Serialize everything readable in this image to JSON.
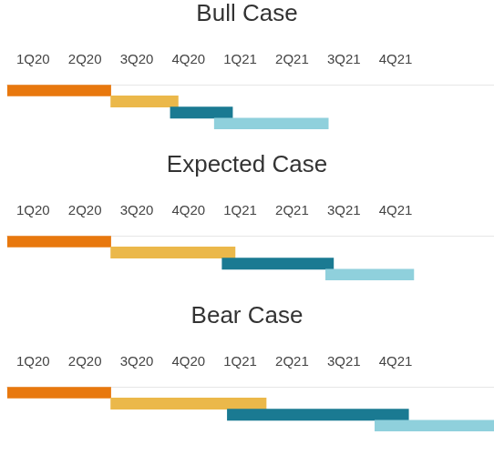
{
  "chart_data": [
    {
      "type": "bar",
      "title": "Bull Case",
      "orientation": "horizontal",
      "categories": [
        null,
        null,
        null,
        null
      ],
      "values": [
        [
          0,
          2
        ],
        [
          2,
          3.3
        ],
        [
          3.15,
          4.35
        ],
        [
          4,
          6.2
        ]
      ],
      "colors": [
        "#e8780e",
        "#ebb84a",
        "#1a7a92",
        "#8fd0dc"
      ],
      "xlim": [
        0,
        9.4
      ],
      "xticks": [
        {
          "value": 0.5,
          "label": "1Q20"
        },
        {
          "value": 1.5,
          "label": "2Q20"
        },
        {
          "value": 2.5,
          "label": "3Q20"
        },
        {
          "value": 3.5,
          "label": "4Q20"
        },
        {
          "value": 4.5,
          "label": "1Q21"
        },
        {
          "value": 5.5,
          "label": "2Q21"
        },
        {
          "value": 6.5,
          "label": "3Q21"
        },
        {
          "value": 7.5,
          "label": "4Q21"
        }
      ],
      "tick_labels": "x",
      "grid": false
    },
    {
      "type": "bar",
      "title": "Expected Case",
      "orientation": "horizontal",
      "categories": [
        null,
        null,
        null,
        null
      ],
      "values": [
        [
          0,
          2
        ],
        [
          2,
          4.4
        ],
        [
          4.15,
          6.3
        ],
        [
          6.15,
          7.85
        ]
      ],
      "colors": [
        "#e8780e",
        "#ebb84a",
        "#1a7a92",
        "#8fd0dc"
      ],
      "xlim": [
        0,
        9.4
      ],
      "xticks": [
        {
          "value": 0.5,
          "label": "1Q20"
        },
        {
          "value": 1.5,
          "label": "2Q20"
        },
        {
          "value": 2.5,
          "label": "3Q20"
        },
        {
          "value": 3.5,
          "label": "4Q20"
        },
        {
          "value": 4.5,
          "label": "1Q21"
        },
        {
          "value": 5.5,
          "label": "2Q21"
        },
        {
          "value": 6.5,
          "label": "3Q21"
        },
        {
          "value": 7.5,
          "label": "4Q21"
        }
      ],
      "tick_labels": "x",
      "grid": false
    },
    {
      "type": "bar",
      "title": "Bear Case",
      "orientation": "horizontal",
      "categories": [
        null,
        null,
        null,
        null
      ],
      "values": [
        [
          0,
          2
        ],
        [
          2,
          5
        ],
        [
          4.25,
          7.75
        ],
        [
          7.1,
          9.4
        ]
      ],
      "colors": [
        "#e8780e",
        "#ebb84a",
        "#1a7a92",
        "#8fd0dc"
      ],
      "xlim": [
        0,
        9.4
      ],
      "xticks": [
        {
          "value": 0.5,
          "label": "1Q20"
        },
        {
          "value": 1.5,
          "label": "2Q20"
        },
        {
          "value": 2.5,
          "label": "3Q20"
        },
        {
          "value": 3.5,
          "label": "4Q20"
        },
        {
          "value": 4.5,
          "label": "1Q21"
        },
        {
          "value": 5.5,
          "label": "2Q21"
        },
        {
          "value": 6.5,
          "label": "3Q21"
        },
        {
          "value": 7.5,
          "label": "4Q21"
        }
      ],
      "tick_labels": "x",
      "grid": false
    }
  ]
}
